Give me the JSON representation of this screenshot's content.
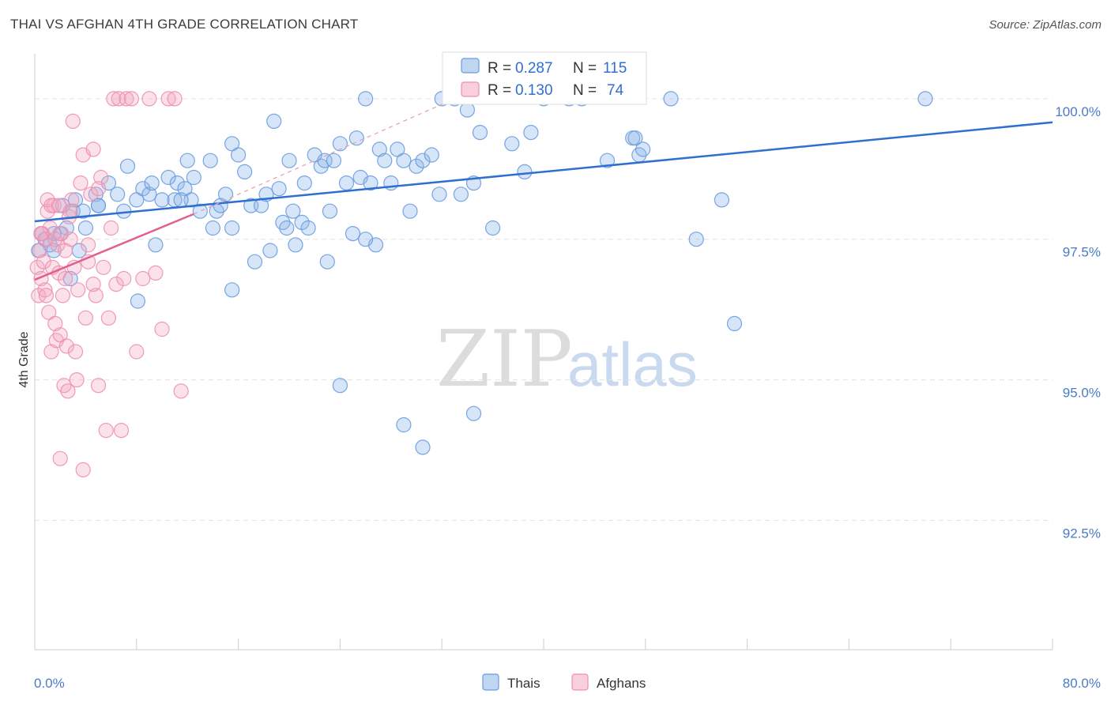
{
  "title": "THAI VS AFGHAN 4TH GRADE CORRELATION CHART",
  "source": "Source: ZipAtlas.com",
  "watermark": {
    "zip": "ZIP",
    "atlas": "atlas"
  },
  "chart_data": {
    "type": "scatter",
    "xlabel": "",
    "ylabel": "4th Grade",
    "xlim": [
      0,
      80
    ],
    "ylim": [
      90.2,
      100.8
    ],
    "x_tick_labels": [
      "0.0%",
      "80.0%"
    ],
    "y_ticks": [
      92.5,
      95.0,
      97.5,
      100.0
    ],
    "y_tick_labels": [
      "92.5%",
      "95.0%",
      "97.5%",
      "100.0%"
    ],
    "legend": [
      {
        "name": "Thais",
        "color": "#8ab4e8"
      },
      {
        "name": "Afghans",
        "color": "#f4a8c0"
      }
    ],
    "stats": [
      {
        "r_label": "R = ",
        "r": "0.287",
        "n_label": "N = ",
        "n": "115",
        "color": "#8ab4e8"
      },
      {
        "r_label": "R = ",
        "r": "0.130",
        "n_label": "N = ",
        "n": "74",
        "color": "#f4a8c0"
      }
    ],
    "series": [
      {
        "name": "Thais",
        "color": "#8ab4e8",
        "stroke": "#6a9be0",
        "trend": {
          "x": [
            0,
            80
          ],
          "y": [
            97.82,
            99.58
          ],
          "color": "#2e6fd0"
        },
        "points": [
          [
            0.3,
            97.3
          ],
          [
            0.5,
            97.6
          ],
          [
            0.8,
            97.5
          ],
          [
            1.2,
            97.4
          ],
          [
            1.5,
            97.3
          ],
          [
            2.0,
            97.6
          ],
          [
            2.5,
            97.7
          ],
          [
            3.0,
            98.0
          ],
          [
            3.5,
            97.3
          ],
          [
            1.5,
            97.6
          ],
          [
            2.2,
            98.1
          ],
          [
            3.2,
            98.2
          ],
          [
            3.8,
            98.0
          ],
          [
            4.0,
            97.7
          ],
          [
            4.8,
            98.3
          ],
          [
            5.0,
            98.1
          ],
          [
            5.8,
            98.5
          ],
          [
            6.5,
            98.3
          ],
          [
            7.0,
            98.0
          ],
          [
            7.3,
            98.8
          ],
          [
            8.0,
            98.2
          ],
          [
            8.5,
            98.4
          ],
          [
            9.0,
            98.3
          ],
          [
            9.2,
            98.5
          ],
          [
            9.5,
            97.4
          ],
          [
            10.0,
            98.2
          ],
          [
            10.5,
            98.6
          ],
          [
            11.0,
            98.2
          ],
          [
            11.2,
            98.5
          ],
          [
            11.8,
            98.4
          ],
          [
            12.0,
            98.9
          ],
          [
            12.3,
            98.2
          ],
          [
            12.5,
            98.6
          ],
          [
            13.0,
            98.0
          ],
          [
            13.8,
            98.9
          ],
          [
            14.0,
            97.7
          ],
          [
            14.3,
            98.0
          ],
          [
            14.6,
            98.1
          ],
          [
            15.0,
            98.3
          ],
          [
            15.5,
            97.7
          ],
          [
            15.5,
            99.2
          ],
          [
            16.0,
            99.0
          ],
          [
            16.5,
            98.7
          ],
          [
            17.0,
            98.1
          ],
          [
            17.3,
            97.1
          ],
          [
            17.8,
            98.1
          ],
          [
            18.2,
            98.3
          ],
          [
            18.5,
            97.3
          ],
          [
            18.8,
            99.6
          ],
          [
            19.2,
            98.4
          ],
          [
            19.5,
            97.8
          ],
          [
            19.8,
            97.7
          ],
          [
            20.0,
            98.9
          ],
          [
            20.5,
            97.4
          ],
          [
            21.0,
            97.8
          ],
          [
            21.2,
            98.5
          ],
          [
            21.5,
            97.7
          ],
          [
            22.0,
            99.0
          ],
          [
            22.5,
            98.8
          ],
          [
            22.8,
            98.9
          ],
          [
            23.0,
            97.1
          ],
          [
            23.2,
            98.0
          ],
          [
            23.5,
            98.9
          ],
          [
            24.0,
            99.2
          ],
          [
            24.5,
            98.5
          ],
          [
            25.0,
            97.6
          ],
          [
            25.3,
            99.3
          ],
          [
            25.6,
            98.6
          ],
          [
            26.0,
            100.0
          ],
          [
            26.4,
            98.5
          ],
          [
            26.8,
            97.4
          ],
          [
            27.1,
            99.1
          ],
          [
            27.5,
            98.9
          ],
          [
            28.0,
            98.5
          ],
          [
            28.5,
            99.1
          ],
          [
            29.0,
            98.9
          ],
          [
            29.5,
            98.0
          ],
          [
            30.0,
            98.8
          ],
          [
            30.5,
            98.9
          ],
          [
            31.2,
            99.0
          ],
          [
            31.8,
            98.3
          ],
          [
            32.0,
            100.0
          ],
          [
            33.0,
            100.0
          ],
          [
            33.5,
            98.3
          ],
          [
            34.0,
            99.8
          ],
          [
            34.5,
            98.5
          ],
          [
            35.0,
            99.4
          ],
          [
            36.0,
            97.7
          ],
          [
            37.5,
            99.2
          ],
          [
            38.5,
            98.7
          ],
          [
            39.0,
            99.4
          ],
          [
            40.0,
            100.0
          ],
          [
            42.0,
            100.0
          ],
          [
            43.0,
            100.0
          ],
          [
            45.0,
            98.9
          ],
          [
            47.0,
            99.3
          ],
          [
            47.5,
            99.0
          ],
          [
            47.8,
            99.1
          ],
          [
            47.2,
            99.3
          ],
          [
            50.0,
            100.0
          ],
          [
            52.0,
            97.5
          ],
          [
            54.0,
            98.2
          ],
          [
            55.0,
            96.0
          ],
          [
            70.0,
            100.0
          ],
          [
            8.1,
            96.4
          ],
          [
            15.5,
            96.6
          ],
          [
            24.0,
            94.9
          ],
          [
            29.0,
            94.2
          ],
          [
            30.5,
            93.8
          ],
          [
            34.5,
            94.4
          ],
          [
            2.8,
            96.8
          ],
          [
            5.0,
            98.1
          ],
          [
            11.5,
            98.2
          ],
          [
            26.0,
            97.5
          ],
          [
            20.3,
            98.0
          ]
        ]
      },
      {
        "name": "Afghans",
        "color": "#f4a8c0",
        "stroke": "#ee8fb0",
        "trend": {
          "x": [
            0,
            12.5
          ],
          "y": [
            96.78,
            97.95
          ],
          "color": "#e0608f"
        },
        "dashed": {
          "x": [
            12.5,
            33
          ],
          "y": [
            97.95,
            100.0
          ],
          "color": "#e8a0b8"
        },
        "points": [
          [
            0.2,
            97.0
          ],
          [
            0.3,
            96.5
          ],
          [
            0.4,
            97.3
          ],
          [
            0.5,
            96.8
          ],
          [
            0.6,
            97.6
          ],
          [
            0.7,
            97.1
          ],
          [
            0.8,
            96.6
          ],
          [
            0.9,
            97.5
          ],
          [
            1.0,
            98.0
          ],
          [
            1.1,
            96.2
          ],
          [
            1.2,
            97.7
          ],
          [
            1.3,
            95.5
          ],
          [
            1.4,
            97.0
          ],
          [
            1.5,
            98.1
          ],
          [
            1.6,
            96.0
          ],
          [
            1.7,
            95.7
          ],
          [
            1.8,
            97.4
          ],
          [
            1.9,
            96.9
          ],
          [
            2.0,
            95.8
          ],
          [
            2.1,
            97.6
          ],
          [
            2.2,
            96.5
          ],
          [
            2.3,
            94.9
          ],
          [
            2.4,
            96.8
          ],
          [
            2.5,
            95.6
          ],
          [
            2.6,
            94.8
          ],
          [
            2.7,
            97.9
          ],
          [
            2.8,
            97.5
          ],
          [
            2.9,
            98.2
          ],
          [
            3.0,
            99.6
          ],
          [
            3.2,
            95.5
          ],
          [
            3.4,
            96.6
          ],
          [
            3.6,
            98.5
          ],
          [
            3.8,
            99.0
          ],
          [
            4.0,
            96.1
          ],
          [
            4.2,
            97.1
          ],
          [
            4.4,
            98.3
          ],
          [
            4.6,
            99.1
          ],
          [
            4.8,
            96.5
          ],
          [
            5.0,
            94.9
          ],
          [
            5.2,
            98.6
          ],
          [
            5.4,
            97.0
          ],
          [
            5.6,
            94.1
          ],
          [
            5.8,
            96.1
          ],
          [
            6.0,
            97.7
          ],
          [
            6.2,
            100.0
          ],
          [
            6.4,
            96.7
          ],
          [
            6.6,
            100.0
          ],
          [
            6.8,
            94.1
          ],
          [
            7.0,
            96.8
          ],
          [
            7.2,
            100.0
          ],
          [
            7.6,
            100.0
          ],
          [
            8.0,
            95.5
          ],
          [
            8.5,
            96.8
          ],
          [
            9.0,
            100.0
          ],
          [
            9.5,
            96.9
          ],
          [
            10.0,
            95.9
          ],
          [
            10.5,
            100.0
          ],
          [
            11.0,
            100.0
          ],
          [
            11.5,
            94.8
          ],
          [
            1.0,
            98.2
          ],
          [
            2.0,
            93.6
          ],
          [
            3.8,
            93.4
          ],
          [
            0.9,
            96.5
          ],
          [
            1.6,
            97.5
          ],
          [
            2.8,
            98.0
          ],
          [
            3.3,
            95.0
          ],
          [
            4.2,
            97.4
          ],
          [
            5.0,
            98.4
          ],
          [
            1.3,
            98.1
          ],
          [
            2.4,
            97.3
          ],
          [
            0.5,
            97.6
          ],
          [
            1.9,
            98.1
          ],
          [
            3.1,
            97.0
          ],
          [
            4.6,
            96.7
          ]
        ]
      }
    ]
  }
}
